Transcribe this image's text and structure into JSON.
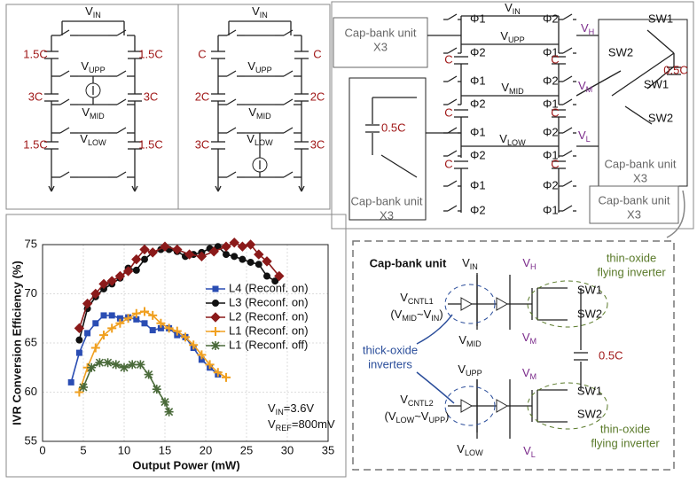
{
  "chart_data": {
    "type": "line",
    "x_label": "Output Power (mW)",
    "y_label": "IVR Conversion Efficiency (%)",
    "xlim": [
      0,
      35
    ],
    "xticks": [
      0,
      5,
      10,
      15,
      20,
      25,
      30,
      35
    ],
    "ylim": [
      55,
      75
    ],
    "yticks": [
      55,
      60,
      65,
      70,
      75
    ],
    "grid": true,
    "legend_position": "upper right",
    "annotations": [
      [
        "V",
        "IN",
        "=3.6V"
      ],
      [
        "V",
        "REF",
        "=800mV"
      ]
    ],
    "series": [
      {
        "name": "L4 (Reconf. on)",
        "color": "#2a4db3",
        "marker": "square",
        "x": [
          3.5,
          4.5,
          5.5,
          6.5,
          7.5,
          8.5,
          9.5,
          10.5,
          11.5,
          12.5,
          13.5,
          14.5,
          15.5,
          16.5,
          17.5,
          18.5,
          19.5,
          20.5,
          21.5
        ],
        "values": [
          61,
          64,
          66,
          67,
          67.8,
          67.8,
          67.5,
          67.6,
          67.4,
          67,
          66.3,
          66.5,
          66.5,
          65.8,
          65.6,
          64.5,
          63.3,
          62.5,
          61.8
        ]
      },
      {
        "name": "L3 (Reconf. on)",
        "color": "#111111",
        "marker": "circle",
        "x": [
          4.5,
          5.5,
          6.5,
          7.5,
          8.5,
          9.5,
          10.5,
          11.5,
          12.5,
          13.5,
          14.5,
          15.5,
          16.5,
          17.5,
          18.5,
          19.5,
          20.5,
          21.5,
          22.5,
          23.5,
          24.5,
          25.5,
          26.5,
          27.5,
          28.5
        ],
        "values": [
          65.3,
          68.5,
          69.7,
          70.5,
          71,
          71.6,
          72.6,
          72.4,
          73.5,
          74.2,
          74.5,
          74.5,
          74.3,
          73.8,
          74,
          74.2,
          74.6,
          74.8,
          74,
          73.8,
          73.5,
          73.2,
          73,
          71.8,
          71.3
        ]
      },
      {
        "name": "L2 (Reconf. on)",
        "color": "#8b1a1a",
        "marker": "diamond",
        "x": [
          4.5,
          5.5,
          6.5,
          7.5,
          8.5,
          9.5,
          10.5,
          11.5,
          12.5,
          13.5,
          15,
          16.5,
          18,
          19.5,
          21,
          22.5,
          23.5,
          24.5,
          25.5,
          26.5,
          27.5,
          29
        ],
        "values": [
          66.5,
          69,
          70,
          71,
          71.3,
          71.8,
          72.3,
          73.5,
          74.5,
          74.2,
          74.8,
          74.5,
          74,
          73.8,
          74.3,
          74.8,
          75.2,
          74.8,
          75,
          74,
          73.3,
          71.8
        ]
      },
      {
        "name": "L1 (Reconf. on)",
        "color": "#f0a020",
        "marker": "plus",
        "x": [
          4.5,
          5.5,
          6.5,
          7.5,
          8.5,
          9.5,
          10.5,
          11.5,
          12.5,
          13.5,
          14.5,
          15.5,
          16.5,
          17.5,
          18.5,
          19.5,
          20.5,
          21.5,
          22.5
        ],
        "values": [
          60,
          62.5,
          64.5,
          65.8,
          66.5,
          67,
          67.5,
          68,
          68.2,
          67.8,
          67,
          66.5,
          66.2,
          65.6,
          64.8,
          63.8,
          62.8,
          62,
          61.5
        ]
      },
      {
        "name": "L1 (Reconf. off)",
        "color": "#4a6a3a",
        "marker": "star",
        "x": [
          5,
          6,
          7,
          8,
          9,
          10,
          11,
          12,
          13,
          14,
          15,
          15.5
        ],
        "values": [
          60.5,
          62.5,
          63,
          63,
          62.8,
          62.5,
          62.8,
          62.8,
          61.8,
          60.3,
          59,
          58
        ]
      }
    ]
  },
  "top_left": {
    "left": {
      "vin": [
        "V",
        "IN"
      ],
      "vupp": [
        "V",
        "UPP"
      ],
      "vmid": [
        "V",
        "MID"
      ],
      "vlow": [
        "V",
        "LOW"
      ],
      "caps": [
        "1.5C",
        "1.5C",
        "3C",
        "3C",
        "1.5C",
        "1.5C"
      ]
    },
    "right": {
      "vin": [
        "V",
        "IN"
      ],
      "vupp": [
        "V",
        "UPP"
      ],
      "vmid": [
        "V",
        "MID"
      ],
      "vlow": [
        "V",
        "LOW"
      ],
      "caps": [
        "C",
        "C",
        "2C",
        "2C",
        "3C",
        "3C"
      ]
    }
  },
  "top_right": {
    "vin": [
      "V",
      "IN"
    ],
    "vupp": [
      "V",
      "UPP"
    ],
    "vmid": [
      "V",
      "MID"
    ],
    "vlow": [
      "V",
      "LOW"
    ],
    "vh": [
      "V",
      "H"
    ],
    "vm": [
      "V",
      "M"
    ],
    "vl": [
      "V",
      "L"
    ],
    "phases_left": [
      "Φ1",
      "Φ2",
      "Φ1",
      "Φ2",
      "Φ1",
      "Φ2",
      "Φ1",
      "Φ2"
    ],
    "phases_right": [
      "Φ2",
      "Φ1",
      "Φ2",
      "Φ1",
      "Φ2",
      "Φ1",
      "Φ2",
      "Φ1"
    ],
    "caps_left": [
      "C",
      "C",
      "C"
    ],
    "caps_right": [
      "C",
      "C",
      "C"
    ],
    "switches": [
      "SW1",
      "SW2",
      "SW1",
      "SW2"
    ],
    "bank_cap_right": "0.5C",
    "bank_cap_left": "0.5C",
    "units": [
      [
        "Cap-bank unit",
        "X3"
      ],
      [
        "Cap-bank unit",
        "X3"
      ],
      [
        "Cap-bank unit",
        "X3"
      ],
      [
        "Cap-bank unit",
        "X3"
      ]
    ]
  },
  "cap_bank": {
    "title": "Cap-bank unit",
    "vin": [
      "V",
      "IN"
    ],
    "vmid": [
      "V",
      "MID"
    ],
    "vupp": [
      "V",
      "UPP"
    ],
    "vlow": [
      "V",
      "LOW"
    ],
    "vh": [
      "V",
      "H"
    ],
    "vm1": [
      "V",
      "M"
    ],
    "vm2": [
      "V",
      "M"
    ],
    "vl": [
      "V",
      "L"
    ],
    "cntl1": [
      "V",
      "CNTL1"
    ],
    "range1": [
      "(V",
      "MID",
      "~V",
      "IN",
      ")"
    ],
    "cntl2": [
      "V",
      "CNTL2"
    ],
    "range2": [
      "(V",
      "LOW",
      "~V",
      "UPP",
      ")"
    ],
    "thick": [
      "thick-oxide",
      "inverters"
    ],
    "thin_top": [
      "thin-oxide",
      "flying inverter"
    ],
    "thin_bottom": [
      "thin-oxide",
      "flying inverter"
    ],
    "switches": [
      "SW1",
      "SW2",
      "SW1",
      "SW2"
    ],
    "cap": "0.5C"
  }
}
